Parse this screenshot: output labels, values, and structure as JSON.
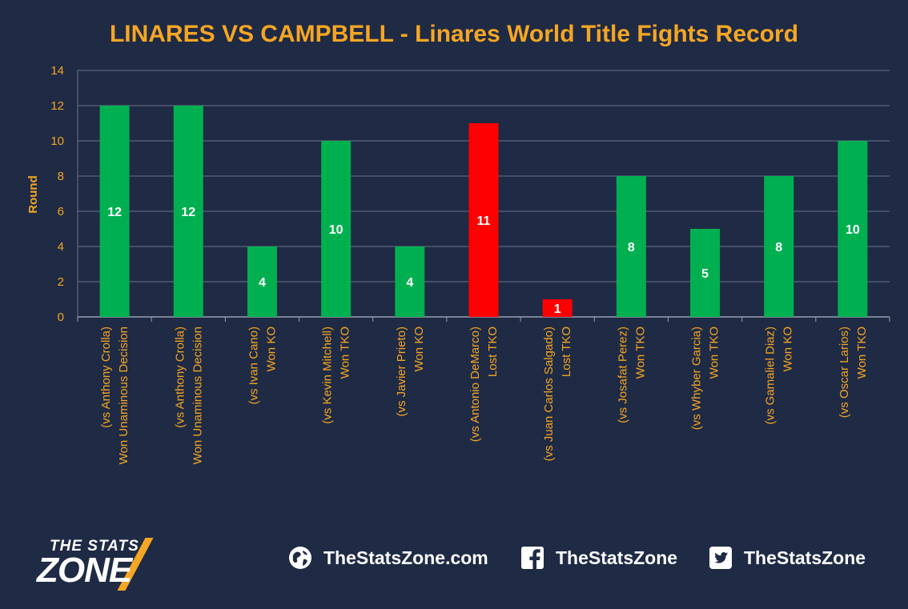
{
  "chart_data": {
    "type": "bar",
    "title": "LINARES VS CAMPBELL - Linares World Title Fights Record",
    "ylabel": "Round",
    "ylim": [
      0,
      14
    ],
    "yticks": [
      0,
      2,
      4,
      6,
      8,
      10,
      12,
      14
    ],
    "grid": true,
    "categories": [
      [
        "(vs Anthony Crolla)",
        "Won Unaminous Decision"
      ],
      [
        "(vs Anthony Crolla)",
        "Won Unaminous Decision"
      ],
      [
        "(vs Ivan Cano)",
        "Won KO"
      ],
      [
        "(vs Kevin Mitchell)",
        "Won TKO"
      ],
      [
        "(vs Javier Prieto)",
        "Won KO"
      ],
      [
        "(vs Antonio DeMarco)",
        "Lost TKO"
      ],
      [
        "(vs Juan Carlos Salgado)",
        "Lost TKO"
      ],
      [
        "(vs Josafat Perez)",
        "Won TKO"
      ],
      [
        "(vs Whyber Garcia)",
        "Won TKO"
      ],
      [
        "(vs Gamaliel Diaz)",
        "Won KO"
      ],
      [
        "(vs Oscar Larios)",
        "Won TKO"
      ]
    ],
    "values": [
      12,
      12,
      4,
      10,
      4,
      11,
      1,
      8,
      5,
      8,
      10
    ],
    "outcomes": [
      "won",
      "won",
      "won",
      "won",
      "won",
      "lost",
      "lost",
      "won",
      "won",
      "won",
      "won"
    ],
    "colors": {
      "won": "#00b050",
      "lost": "#ff0000",
      "title": "#f5a623",
      "axis_text": "#f5a623",
      "grid": "#6b7388",
      "background": "#1f2a44",
      "data_label": "#ffffff"
    }
  },
  "footer": {
    "logo_top": "THE STATS",
    "logo_main": "ZONE",
    "website": "TheStatsZone.com",
    "facebook": "TheStatsZone",
    "twitter": "TheStatsZone",
    "website_icon": "globe-icon",
    "facebook_icon": "facebook-icon",
    "twitter_icon": "twitter-icon"
  }
}
